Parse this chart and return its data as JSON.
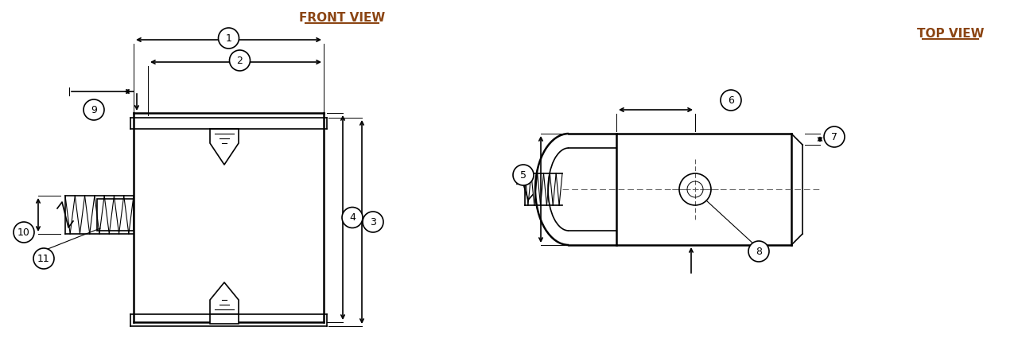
{
  "bg_color": "#ffffff",
  "line_color": "#000000",
  "title_color": "#8B4513",
  "front_view_label": "FRONT VIEW",
  "top_view_label": "TOP VIEW",
  "figsize": [
    12.85,
    4.4
  ],
  "dpi": 100
}
